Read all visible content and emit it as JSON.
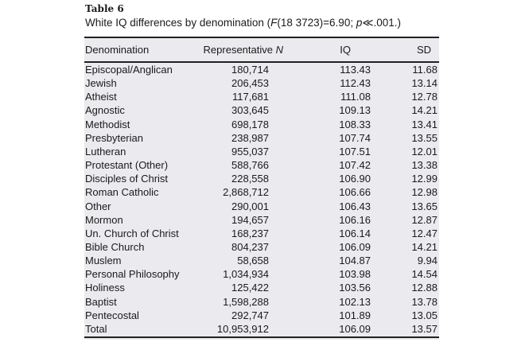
{
  "table": {
    "label": "Table 6",
    "caption_pre": "White IQ differences by denomination (",
    "caption_F": "F",
    "caption_mid": "(18 3723)=6.90; ",
    "caption_p": "p",
    "caption_post": "≪.001.)",
    "headers": {
      "denomination": "Denomination",
      "n_pre": "Representative ",
      "n_italic": "N",
      "iq": "IQ",
      "sd": "SD"
    },
    "rows": [
      [
        "Episcopal/Anglican",
        "180,714",
        "113.43",
        "11.68"
      ],
      [
        "Jewish",
        "206,453",
        "112.43",
        "13.14"
      ],
      [
        "Atheist",
        "117,681",
        "111.08",
        "12.78"
      ],
      [
        "Agnostic",
        "303,645",
        "109.13",
        "14.21"
      ],
      [
        "Methodist",
        "698,178",
        "108.33",
        "13.41"
      ],
      [
        "Presbyterian",
        "238,987",
        "107.74",
        "13.55"
      ],
      [
        "Lutheran",
        "955,037",
        "107.51",
        "12.01"
      ],
      [
        "Protestant (Other)",
        "588,766",
        "107.42",
        "13.38"
      ],
      [
        "Disciples of Christ",
        "228,558",
        "106.90",
        "12.99"
      ],
      [
        "Roman Catholic",
        "2,868,712",
        "106.66",
        "12.98"
      ],
      [
        "Other",
        "290,001",
        "106.43",
        "13.65"
      ],
      [
        "Mormon",
        "194,657",
        "106.16",
        "12.87"
      ],
      [
        "Un. Church of Christ",
        "168,237",
        "106.14",
        "12.47"
      ],
      [
        "Bible Church",
        "804,237",
        "106.09",
        "14.21"
      ],
      [
        "Muslem",
        "58,658",
        "104.87",
        "9.94"
      ],
      [
        "Personal Philosophy",
        "1,034,934",
        "103.98",
        "14.54"
      ],
      [
        "Holiness",
        "125,422",
        "103.56",
        "12.88"
      ],
      [
        "Baptist",
        "1,598,288",
        "102.13",
        "13.78"
      ],
      [
        "Pentecostal",
        "292,747",
        "101.89",
        "13.05"
      ],
      [
        "Total",
        "10,953,912",
        "106.09",
        "13.57"
      ]
    ]
  }
}
